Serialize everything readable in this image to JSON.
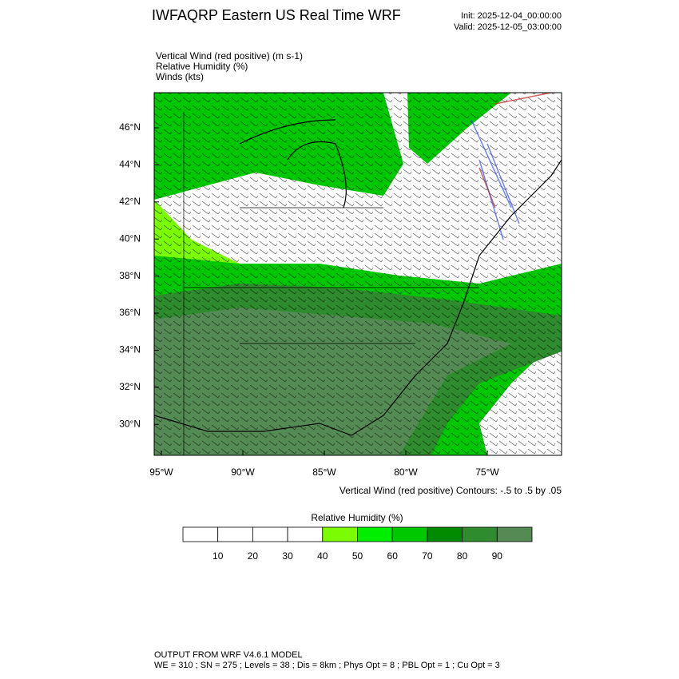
{
  "header": {
    "title": "IWFAQRP Eastern US Real Time WRF",
    "init": "Init: 2025-12-04_00:00:00",
    "valid": "Valid: 2025-12-05_03:00:00"
  },
  "fields": [
    "Vertical Wind (red positive)   (m s-1)",
    "Relative Humidity   (%)",
    "Winds   (kts)"
  ],
  "map": {
    "lat_labels": [
      "46°N",
      "44°N",
      "42°N",
      "40°N",
      "38°N",
      "36°N",
      "34°N",
      "32°N",
      "30°N"
    ],
    "lon_labels": [
      "95°W",
      "90°W",
      "85°W",
      "80°W",
      "75°W"
    ],
    "contour_note": "Vertical Wind (red positive) Contours: -.5 to .5 by .05"
  },
  "colorbar": {
    "title": "Relative Humidity  (%)",
    "labels": [
      "10",
      "20",
      "30",
      "40",
      "50",
      "60",
      "70",
      "80",
      "90"
    ],
    "colors": [
      "#ffffff",
      "#ffffff",
      "#ffffff",
      "#ffffff",
      "#7cfc00",
      "#00ee00",
      "#00c800",
      "#008b00",
      "#2e8b2e",
      "#548b54"
    ]
  },
  "footer": {
    "line1": "OUTPUT FROM WRF V4.6.1 MODEL",
    "line2": "WE = 310 ; SN = 275 ; Levels = 38 ; Dis = 8km ; Phys Opt = 8 ; PBL Opt = 1 ; Cu Opt = 3"
  }
}
